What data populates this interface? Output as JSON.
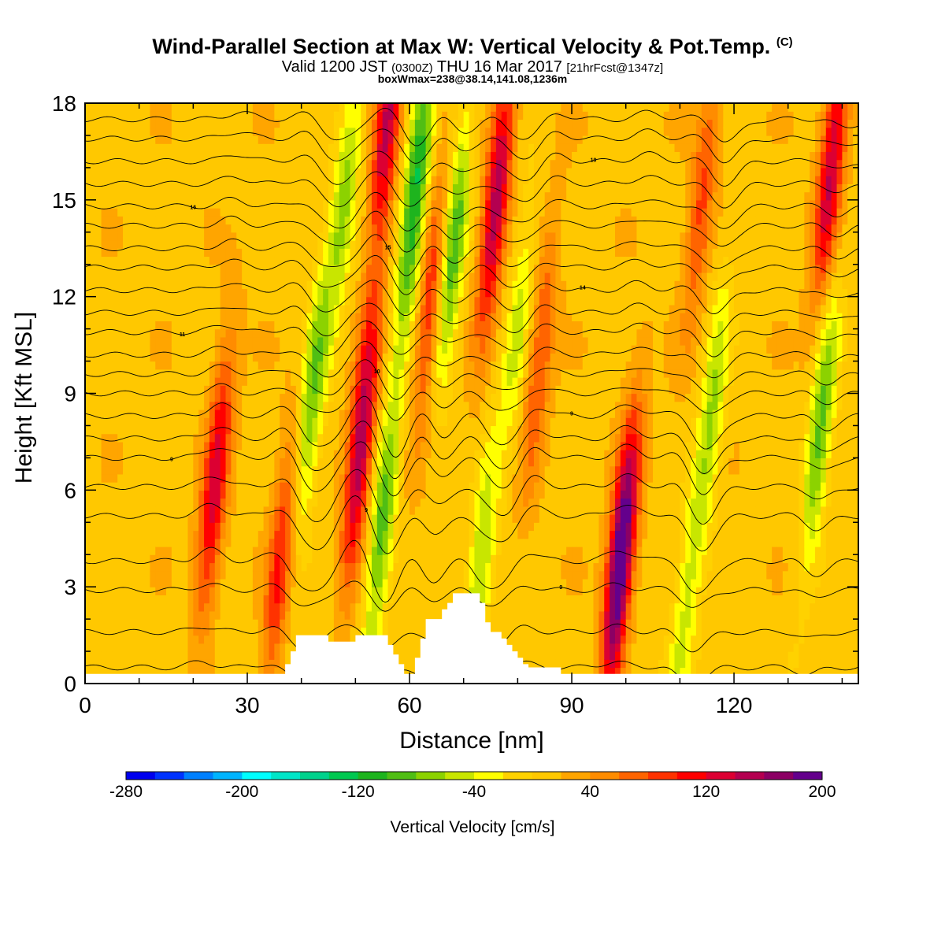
{
  "header": {
    "title_main": "Wind-Parallel Section at Max W: Vertical Velocity & Pot.Temp.",
    "title_unit": "(C)",
    "valid_prefix": "Valid 1200 JST",
    "valid_utc": "(0300Z)",
    "valid_date": "THU 16 Mar 2017",
    "forecast": "[21hrFcst@1347z]",
    "box_info": "boxWmax=238@38.14,141.08,1236m"
  },
  "chart_data": {
    "type": "heatmap",
    "xlabel": "Distance [nm]",
    "ylabel": "Height [Kft MSL]",
    "xlim": [
      0,
      143
    ],
    "ylim": [
      0,
      18
    ],
    "xticks": [
      0,
      30,
      60,
      90,
      120
    ],
    "yticks": [
      0,
      3,
      6,
      9,
      12,
      15,
      18
    ],
    "colorbar": {
      "label": "Vertical Velocity [cm/s]",
      "min": -280,
      "max": 220,
      "step": 20,
      "tick_values": [
        -280,
        -200,
        -120,
        -40,
        40,
        120,
        200
      ],
      "tick_labels": [
        "-280",
        "-200",
        "-120",
        "-40",
        "40",
        "120",
        "200"
      ],
      "colors": [
        "#0000ee",
        "#0033ff",
        "#0080ff",
        "#00b4ff",
        "#00ffff",
        "#00e6c8",
        "#00d28c",
        "#00c850",
        "#1eb41e",
        "#50be14",
        "#8cd200",
        "#c8e600",
        "#ffff00",
        "#ffd200",
        "#ffc800",
        "#ffa500",
        "#ff8c00",
        "#ff6400",
        "#ff3200",
        "#ff0000",
        "#dc0032",
        "#b40050",
        "#8c0064",
        "#64008c"
      ]
    },
    "updrafts": [
      {
        "x": 24,
        "z": 6.2,
        "w": 120
      },
      {
        "x": 36,
        "z": 3.6,
        "w": 90
      },
      {
        "x": 51,
        "z": 7.5,
        "w": 150
      },
      {
        "x": 56,
        "z": 17.5,
        "w": 130
      },
      {
        "x": 64,
        "z": 12,
        "w": 90
      },
      {
        "x": 76,
        "z": 15,
        "w": 140
      },
      {
        "x": 84,
        "z": 10,
        "w": 70
      },
      {
        "x": 99,
        "z": 3.8,
        "w": 210
      },
      {
        "x": 114,
        "z": 15,
        "w": 70
      },
      {
        "x": 138,
        "z": 16,
        "w": 130
      }
    ],
    "downdrafts": [
      {
        "x": 42,
        "z": 9,
        "w": -95
      },
      {
        "x": 48,
        "z": 15,
        "w": -80
      },
      {
        "x": 55,
        "z": 5,
        "w": -105
      },
      {
        "x": 61,
        "z": 15,
        "w": -140
      },
      {
        "x": 68,
        "z": 13.5,
        "w": -115
      },
      {
        "x": 73,
        "z": 3.5,
        "w": -80
      },
      {
        "x": 80,
        "z": 11,
        "w": -60
      },
      {
        "x": 111,
        "z": 2.5,
        "w": -55
      },
      {
        "x": 116,
        "z": 8.5,
        "w": -75
      },
      {
        "x": 136,
        "z": 8,
        "w": -105
      }
    ],
    "terrain": [
      [
        0,
        0.3
      ],
      [
        35,
        0.3
      ],
      [
        37,
        0.6
      ],
      [
        38,
        1.0
      ],
      [
        39,
        1.5
      ],
      [
        44,
        1.5
      ],
      [
        45,
        1.3
      ],
      [
        49,
        1.3
      ],
      [
        50,
        1.5
      ],
      [
        55,
        1.5
      ],
      [
        56,
        1.2
      ],
      [
        57,
        0.9
      ],
      [
        58,
        0.6
      ],
      [
        59,
        0.3
      ],
      [
        60,
        0.3
      ],
      [
        61,
        0.8
      ],
      [
        62,
        1.4
      ],
      [
        63,
        2.0
      ],
      [
        65,
        2.0
      ],
      [
        66,
        2.3
      ],
      [
        67,
        2.5
      ],
      [
        68,
        2.8
      ],
      [
        72,
        2.8
      ],
      [
        73,
        2.5
      ],
      [
        74,
        1.9
      ],
      [
        75,
        1.6
      ],
      [
        77,
        1.4
      ],
      [
        78,
        1.2
      ],
      [
        79,
        1.0
      ],
      [
        80,
        0.8
      ],
      [
        81,
        0.6
      ],
      [
        82,
        0.5
      ],
      [
        87,
        0.5
      ],
      [
        88,
        0.3
      ],
      [
        143,
        0.3
      ]
    ],
    "theta_contours": [
      {
        "base": 0.5,
        "label": null
      },
      {
        "base": 1.6,
        "label": null
      },
      {
        "base": 2.9,
        "label": "9"
      },
      {
        "base": 3.8,
        "label": null
      },
      {
        "base": 5.2,
        "label": "9"
      },
      {
        "base": 6.1,
        "label": null
      },
      {
        "base": 7.0,
        "label": "9"
      },
      {
        "base": 7.6,
        "label": null
      },
      {
        "base": 8.3,
        "label": "9"
      },
      {
        "base": 9.0,
        "label": null
      },
      {
        "base": 9.6,
        "label": "10"
      },
      {
        "base": 10.2,
        "label": null
      },
      {
        "base": 10.9,
        "label": "11"
      },
      {
        "base": 11.5,
        "label": null
      },
      {
        "base": 12.2,
        "label": "14"
      },
      {
        "base": 12.9,
        "label": null
      },
      {
        "base": 13.5,
        "label": "15"
      },
      {
        "base": 14.2,
        "label": null
      },
      {
        "base": 14.8,
        "label": "16"
      },
      {
        "base": 15.5,
        "label": null
      },
      {
        "base": 16.2,
        "label": "19"
      },
      {
        "base": 16.9,
        "label": null
      },
      {
        "base": 17.5,
        "label": null
      }
    ]
  }
}
